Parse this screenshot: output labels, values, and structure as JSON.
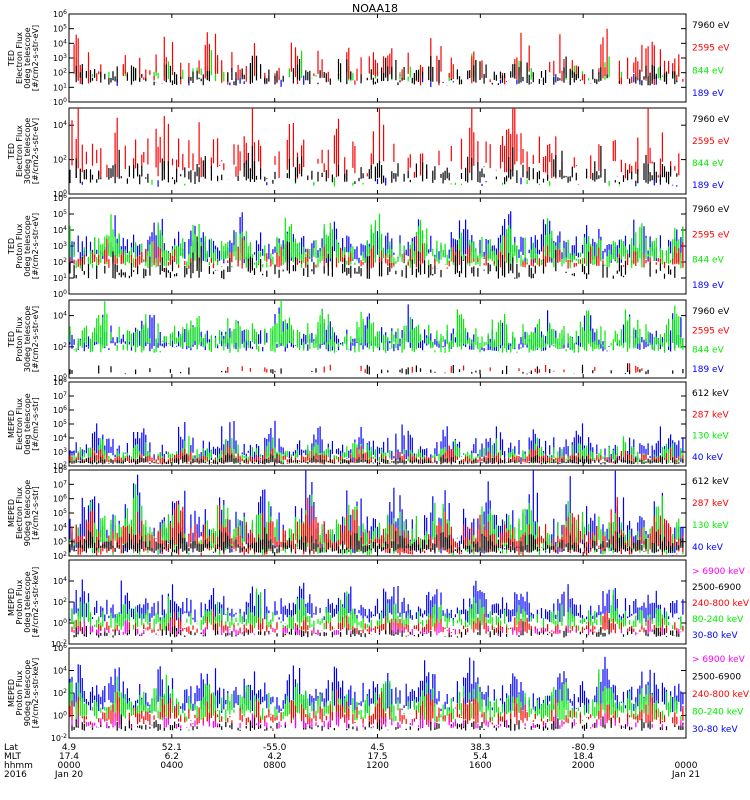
{
  "title": "NOAA18",
  "colors": {
    "black": "#000000",
    "red": "#ff0000",
    "green": "#00ee00",
    "blue": "#0000ff",
    "magenta": "#ff00ff"
  },
  "chart_data": [
    {
      "type": "line",
      "id": "ted-e-0",
      "ylabel": [
        "TED",
        "Electron Flux",
        "0deg telescope",
        "[#/cm2-s-str-eV]"
      ],
      "y_log_range": [
        0,
        6
      ],
      "y_ticks": [
        "10^0",
        "10^1",
        "10^2",
        "10^3",
        "10^4",
        "10^5",
        "10^6"
      ],
      "series": [
        {
          "name": "7960 eV",
          "color": "#000000",
          "level": 1.4,
          "noise": 0.9,
          "density": 0.55
        },
        {
          "name": "2595 eV",
          "color": "#ff0000",
          "level": 1.6,
          "noise": 1.6,
          "density": 0.45
        },
        {
          "name": "844 eV",
          "color": "#00ee00",
          "level": 1.6,
          "noise": 0.8,
          "density": 0.25
        },
        {
          "name": "189 eV",
          "color": "#0000ff",
          "level": 1.2,
          "noise": 0.6,
          "density": 0.1
        }
      ]
    },
    {
      "type": "line",
      "id": "ted-e-30",
      "ylabel": [
        "TED",
        "Electron Flux",
        "30deg telescope",
        "[#/cm2-s-str-eV]"
      ],
      "y_log_range": [
        0,
        5
      ],
      "y_ticks": [
        "10^0",
        "10^2",
        "10^4"
      ],
      "series": [
        {
          "name": "7960 eV",
          "color": "#000000",
          "level": 0.8,
          "noise": 0.8,
          "density": 0.55
        },
        {
          "name": "2595 eV",
          "color": "#ff0000",
          "level": 1.4,
          "noise": 1.8,
          "density": 0.45
        },
        {
          "name": "844 eV",
          "color": "#00ee00",
          "level": 0.5,
          "noise": 0.3,
          "density": 0.05
        },
        {
          "name": "189 eV",
          "color": "#0000ff",
          "level": 0.5,
          "noise": 0.3,
          "density": 0.05
        }
      ]
    },
    {
      "type": "line",
      "id": "ted-p-0",
      "ylabel": [
        "TED",
        "Proton Flux",
        "0deg telescope",
        "[#/cm2-s-str-eV]"
      ],
      "y_log_range": [
        0,
        6
      ],
      "y_ticks": [
        "10^0",
        "10^1",
        "10^2",
        "10^3",
        "10^4",
        "10^5",
        "10^6"
      ],
      "series": [
        {
          "name": "7960 eV",
          "color": "#000000",
          "level": 1.2,
          "noise": 0.9,
          "density": 0.5
        },
        {
          "name": "2595 eV",
          "color": "#ff0000",
          "level": 1.8,
          "noise": 0.8,
          "density": 0.5
        },
        {
          "name": "844 eV",
          "color": "#00ee00",
          "level": 2.0,
          "noise": 1.3,
          "density": 0.95
        },
        {
          "name": "189 eV",
          "color": "#0000ff",
          "level": 2.3,
          "noise": 1.3,
          "density": 0.95
        }
      ]
    },
    {
      "type": "line",
      "id": "ted-p-30",
      "ylabel": [
        "TED",
        "Proton Flux",
        "30deg telescope",
        "[#/cm2-s-str-eV]"
      ],
      "y_log_range": [
        0,
        5
      ],
      "y_ticks": [
        "10^0",
        "10^2",
        "10^4"
      ],
      "series": [
        {
          "name": "7960 eV",
          "color": "#000000",
          "level": 0.3,
          "noise": 0.3,
          "density": 0.2
        },
        {
          "name": "2595 eV",
          "color": "#ff0000",
          "level": 0.4,
          "noise": 0.3,
          "density": 0.1
        },
        {
          "name": "844 eV",
          "color": "#00ee00",
          "level": 2.0,
          "noise": 1.3,
          "density": 0.9
        },
        {
          "name": "189 eV",
          "color": "#0000ff",
          "level": 2.0,
          "noise": 1.0,
          "density": 0.9
        }
      ]
    },
    {
      "type": "line",
      "id": "meped-e-0",
      "ylabel": [
        "MEPED",
        "Electron Flux",
        "0deg telescope",
        "[#/cm2-s-str]"
      ],
      "y_log_range": [
        2,
        8
      ],
      "y_ticks": [
        "10^2",
        "10^3",
        "10^4",
        "10^5",
        "10^6",
        "10^7",
        "10^8"
      ],
      "series": [
        {
          "name": "612 keV",
          "color": "#000000",
          "level": 2.2,
          "noise": 0.3,
          "density": 0.9
        },
        {
          "name": "287 keV",
          "color": "#ff0000",
          "level": 2.3,
          "noise": 0.5,
          "density": 0.9
        },
        {
          "name": "130 keV",
          "color": "#00ee00",
          "level": 2.4,
          "noise": 0.8,
          "density": 0.9
        },
        {
          "name": "40 keV",
          "color": "#0000ff",
          "level": 2.6,
          "noise": 1.2,
          "density": 0.9
        }
      ]
    },
    {
      "type": "line",
      "id": "meped-e-90",
      "ylabel": [
        "MEPED",
        "Electron Flux",
        "90deg telescope",
        "[#/cm2-s-str]"
      ],
      "y_log_range": [
        2,
        8
      ],
      "y_ticks": [
        "10^2",
        "10^3",
        "10^4",
        "10^5",
        "10^6",
        "10^7",
        "10^8"
      ],
      "series": [
        {
          "name": "612 keV",
          "color": "#000000",
          "level": 2.4,
          "noise": 0.7,
          "density": 0.95
        },
        {
          "name": "287 keV",
          "color": "#ff0000",
          "level": 2.5,
          "noise": 1.5,
          "density": 0.9
        },
        {
          "name": "130 keV",
          "color": "#00ee00",
          "level": 2.6,
          "noise": 1.8,
          "density": 0.9
        },
        {
          "name": "40 keV",
          "color": "#0000ff",
          "level": 2.8,
          "noise": 2.2,
          "density": 0.9
        }
      ]
    },
    {
      "type": "line",
      "id": "meped-p-0",
      "ylabel": [
        "MEPED",
        "Proton Flux",
        "0deg telescope",
        "[#/cm2-s-str-keV]"
      ],
      "y_log_range": [
        -2,
        6
      ],
      "y_ticks": [
        "10^-2",
        "10^0",
        "10^2",
        "10^4"
      ],
      "series": [
        {
          "name": "> 6900 keV",
          "color": "#ff00ff",
          "level": -1.0,
          "noise": 0.6,
          "density": 0.3
        },
        {
          "name": "2500-6900 keV",
          "color": "#000000",
          "level": -1.2,
          "noise": 0.6,
          "density": 0.5
        },
        {
          "name": "240-800 keV",
          "color": "#ff0000",
          "level": -0.8,
          "noise": 0.8,
          "density": 0.7
        },
        {
          "name": "80-240 keV",
          "color": "#00ee00",
          "level": -0.3,
          "noise": 1.5,
          "density": 0.8
        },
        {
          "name": "30-80 keV",
          "color": "#0000ff",
          "level": 0.5,
          "noise": 1.6,
          "density": 0.95
        }
      ]
    },
    {
      "type": "line",
      "id": "meped-p-90",
      "ylabel": [
        "MEPED",
        "Proton Flux",
        "90deg telescope",
        "[#/cm2-s-str-keV]"
      ],
      "y_log_range": [
        -2,
        6
      ],
      "y_ticks": [
        "10^-2",
        "10^0",
        "10^2",
        "10^4",
        "10^6"
      ],
      "series": [
        {
          "name": "> 6900 keV",
          "color": "#ff00ff",
          "level": -1.0,
          "noise": 0.6,
          "density": 0.3
        },
        {
          "name": "2500-6900 keV",
          "color": "#000000",
          "level": -1.2,
          "noise": 0.6,
          "density": 0.5
        },
        {
          "name": "240-800 keV",
          "color": "#ff0000",
          "level": -0.5,
          "noise": 1.2,
          "density": 0.7
        },
        {
          "name": "80-240 keV",
          "color": "#00ee00",
          "level": 0.0,
          "noise": 1.8,
          "density": 0.85
        },
        {
          "name": "30-80 keV",
          "color": "#0000ff",
          "level": 0.8,
          "noise": 2.0,
          "density": 0.95
        }
      ]
    }
  ],
  "legend_labels": [
    [
      "7960 eV",
      "2595 eV",
      "844 eV",
      "189 eV"
    ],
    [
      "7960 eV",
      "2595 eV",
      "844 eV",
      "189 eV"
    ],
    [
      "7960 eV",
      "2595 eV",
      "844 eV",
      "189 eV"
    ],
    [
      "7960 eV",
      "2595 eV",
      "844 eV",
      "189 eV"
    ],
    [
      "612 keV",
      "287 keV",
      "130 keV",
      "40 keV"
    ],
    [
      "612 keV",
      "287 keV",
      "130 keV",
      "40 keV"
    ],
    [
      "> 6900 keV",
      "2500-6900",
      "240-800 keV",
      "80-240 keV",
      "30-80 keV"
    ],
    [
      "> 6900 keV",
      "2500-6900",
      "240-800 keV",
      "80-240 keV",
      "30-80 keV"
    ]
  ],
  "x_axis": {
    "row_labels": [
      "Lat",
      "MLT",
      "hhmm",
      "2016"
    ],
    "ticks": [
      {
        "lat": "4.9",
        "mlt": "17.4",
        "hhmm": "0000",
        "date": "Jan 20"
      },
      {
        "lat": "52.1",
        "mlt": "6.2",
        "hhmm": "0400",
        "date": ""
      },
      {
        "lat": "-55.0",
        "mlt": "4.2",
        "hhmm": "0800",
        "date": ""
      },
      {
        "lat": "4.5",
        "mlt": "17.5",
        "hhmm": "1200",
        "date": ""
      },
      {
        "lat": "38.3",
        "mlt": "5.4",
        "hhmm": "1600",
        "date": ""
      },
      {
        "lat": "-80.9",
        "mlt": "18.4",
        "hhmm": "2000",
        "date": ""
      },
      {
        "lat": "",
        "mlt": "",
        "hhmm": "0000",
        "date": "Jan 21"
      }
    ]
  }
}
